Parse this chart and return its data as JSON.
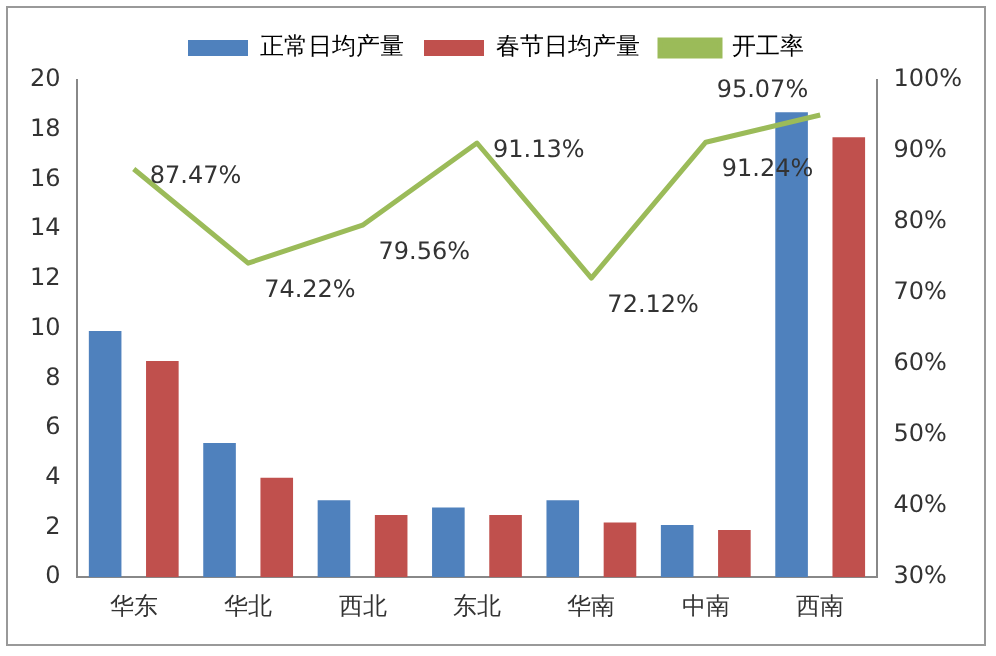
{
  "chart_data": {
    "type": "bar",
    "categories": [
      "华东",
      "华北",
      "西北",
      "东北",
      "华南",
      "中南",
      "西南"
    ],
    "series": [
      {
        "name": "正常日均产量",
        "color": "#4f81bd",
        "values": [
          9.9,
          5.4,
          3.1,
          2.8,
          3.1,
          2.1,
          18.7
        ]
      },
      {
        "name": "春节日均产量",
        "color": "#c0504d",
        "values": [
          8.7,
          4.0,
          2.5,
          2.5,
          2.2,
          1.9,
          17.7
        ]
      },
      {
        "name": "开工率",
        "type": "line",
        "axis": "y2",
        "color": "#9bbb59",
        "values": [
          87.47,
          74.22,
          79.56,
          91.13,
          72.12,
          91.24,
          95.07
        ],
        "value_labels": [
          "87.47%",
          "74.22%",
          "79.56%",
          "91.13%",
          "72.12%",
          "91.24%",
          "95.07%"
        ]
      }
    ],
    "ylim": [
      0,
      20
    ],
    "yticks": [
      0,
      2,
      4,
      6,
      8,
      10,
      12,
      14,
      16,
      18,
      20
    ],
    "y2lim": [
      30,
      100
    ],
    "y2ticks": [
      {
        "value": 30,
        "label": "30%"
      },
      {
        "value": 40,
        "label": "40%"
      },
      {
        "value": 50,
        "label": "50%"
      },
      {
        "value": 60,
        "label": "60%"
      },
      {
        "value": 70,
        "label": "70%"
      },
      {
        "value": 80,
        "label": "80%"
      },
      {
        "value": 90,
        "label": "90%"
      },
      {
        "value": 100,
        "label": "100%"
      }
    ],
    "grid": false,
    "legend": "top",
    "marker": "none"
  }
}
